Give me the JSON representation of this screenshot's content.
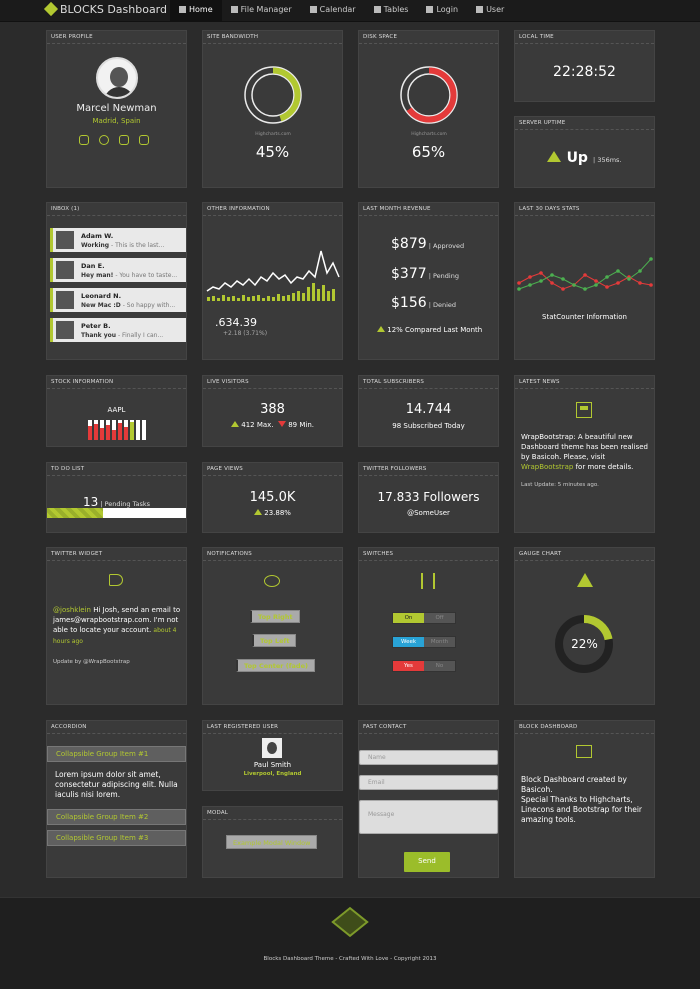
{
  "brand": {
    "title": "BLOCKS Dashboard"
  },
  "nav": [
    {
      "label": "Home",
      "icon": "home-icon"
    },
    {
      "label": "File Manager",
      "icon": "folder-icon"
    },
    {
      "label": "Calendar",
      "icon": "calendar-icon"
    },
    {
      "label": "Tables",
      "icon": "table-icon"
    },
    {
      "label": "Login",
      "icon": "lock-icon"
    },
    {
      "label": "User",
      "icon": "user-icon"
    }
  ],
  "user_profile": {
    "header": "USER PROFILE",
    "name": "Marcel Newman",
    "location": "Madrid, Spain"
  },
  "bandwidth": {
    "header": "SITE BANDWIDTH",
    "value": "45%",
    "credit": "Highcharts.com",
    "percent": 45
  },
  "disk": {
    "header": "DISK SPACE",
    "value": "65%",
    "credit": "Highcharts.com",
    "percent": 65
  },
  "local_time": {
    "header": "LOCAL TIME",
    "time": "22:28:52"
  },
  "uptime": {
    "header": "SERVER UPTIME",
    "status": "Up",
    "ms": "356ms."
  },
  "inbox": {
    "header": "INBOX (1)",
    "messages": [
      {
        "name": "Adam W.",
        "subject": "Working",
        "preview": " - This is the last..."
      },
      {
        "name": "Dan E.",
        "subject": "Hey man!",
        "preview": " - You have to taste..."
      },
      {
        "name": "Leonard N.",
        "subject": "New Mac :D",
        "preview": " - So happy with..."
      },
      {
        "name": "Peter B.",
        "subject": "Thank you",
        "preview": " - Finally I can..."
      }
    ]
  },
  "other_info": {
    "header": "OTHER INFORMATION",
    "value": "634.39",
    "change": "+2.18 (3.71%)"
  },
  "revenue": {
    "header": "LAST MONTH REVENUE",
    "rows": [
      {
        "amount": "$879",
        "status": "Approved"
      },
      {
        "amount": "$377",
        "status": "Pending"
      },
      {
        "amount": "$156",
        "status": "Denied"
      }
    ],
    "compare": "12% Compared Last Month"
  },
  "stats30": {
    "header": "LAST 30 DAYS STATS",
    "caption": "StatCounter Information"
  },
  "stock": {
    "header": "STOCK INFORMATION",
    "symbol": "AAPL"
  },
  "live": {
    "header": "LIVE VISITORS",
    "value": "388",
    "max": "412 Max.",
    "min": "89 Min."
  },
  "subscribers": {
    "header": "TOTAL SUBSCRIBERS",
    "value": "14.744",
    "today": "98 Subscribed Today"
  },
  "news": {
    "header": "LATEST NEWS",
    "text1": "WrapBootstrap: A beautiful new Dashboard theme has been realised by Basicoh. Please, visit ",
    "link": "WrapBootstrap",
    "text2": " for more details.",
    "updated": "Last Update: 5 minutes ago."
  },
  "todo": {
    "header": "TO DO LIST",
    "count": "13",
    "label": "Pending Tasks",
    "progress": 0.4
  },
  "pageviews": {
    "header": "PAGE VIEWS",
    "value": "145.0K",
    "change": "23.88%"
  },
  "twitter_followers": {
    "header": "TWITTER FOLLOWERS",
    "value": "17.833 Followers",
    "user": "@SomeUser"
  },
  "twitter_widget": {
    "header": "TWITTER WIDGET",
    "handle": "@joshklein",
    "text": " Hi Josh, send an email to james@wrapbootstrap.com. I'm not able to locate your account. ",
    "time": "about 4 hours ago",
    "footer": "Update by @WrapBootstrap"
  },
  "notifications": {
    "header": "NOTIFICATIONS",
    "buttons": [
      "Top Right",
      "Top Left",
      "Top Center (fade)"
    ]
  },
  "switches": {
    "header": "SWITCHES",
    "items": [
      {
        "on": "On",
        "off": "Off",
        "color": "#b2c831"
      },
      {
        "on": "Week",
        "off": "Month",
        "color": "#29a3d6"
      },
      {
        "on": "Yes",
        "off": "No",
        "color": "#e43a3a"
      }
    ]
  },
  "gauge": {
    "header": "GAUGE CHART",
    "value": "22%",
    "percent": 22
  },
  "accordion": {
    "header": "ACCORDION",
    "items": [
      "Collapsible Group Item #1",
      "Collapsible Group Item #2",
      "Collapsible Group Item #3"
    ],
    "body": "Lorem ipsum dolor sit amet, consectetur adipiscing elit. Nulla iaculis nisi lorem."
  },
  "last_user": {
    "header": "LAST REGISTERED USER",
    "name": "Paul Smith",
    "location": "Liverpool, England"
  },
  "modal": {
    "header": "MODAL",
    "button": "Example Modal Window"
  },
  "contact": {
    "header": "FAST CONTACT",
    "name_ph": "Name",
    "email_ph": "Email",
    "message_ph": "Message",
    "send": "Send"
  },
  "block_dash": {
    "header": "BLOCK DASHBOARD",
    "text1": "Block Dashboard created by Basicoh.",
    "text2": "Special Thanks to Highcharts, Linecons and Bootstrap for their amazing tools."
  },
  "footer": {
    "copyright": "Blocks Dashboard Theme - Crafted With Love - Copyright 2013"
  },
  "colors": {
    "accent": "#b2c831",
    "danger": "#e43a3a",
    "info": "#29a3d6"
  }
}
